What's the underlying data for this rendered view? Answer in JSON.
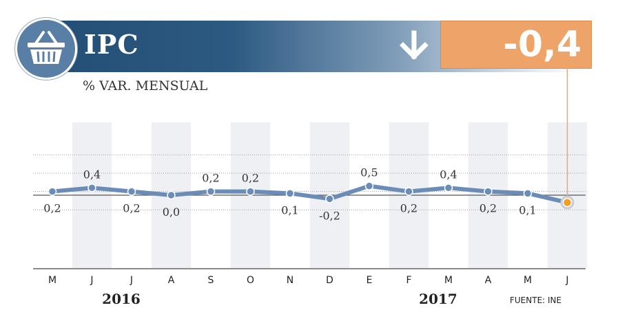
{
  "header": {
    "title": "IPC",
    "current_value": "-0,4",
    "trend_icon": "down-arrow-icon",
    "logo_icon": "shopping-basket-icon"
  },
  "subtitle": "% VAR. MENSUAL",
  "source": "FUENTE: INE",
  "colors": {
    "line": "#6a8cb6",
    "header_dark": "#234d74",
    "value_box": "#eea468",
    "highlight_point": "#f0a020"
  },
  "chart_data": {
    "type": "line",
    "categories": [
      "M",
      "J",
      "J",
      "A",
      "S",
      "O",
      "N",
      "D",
      "E",
      "F",
      "M",
      "A",
      "M",
      "J"
    ],
    "values": [
      0.2,
      0.4,
      0.2,
      0.0,
      0.2,
      0.2,
      0.1,
      -0.2,
      0.5,
      0.2,
      0.4,
      0.2,
      0.1,
      -0.4
    ],
    "data_labels": [
      "0,2",
      "0,4",
      "0,2",
      "0,0",
      "0,2",
      "0,2",
      "0,1",
      "-0,2",
      "0,5",
      "0,2",
      "0,4",
      "0,2",
      "0,1",
      ""
    ],
    "year_labels": [
      {
        "text": "2016",
        "category_index": 2
      },
      {
        "text": "2017",
        "category_index": 10
      }
    ],
    "title": "IPC",
    "ylabel": "% VAR. MENSUAL",
    "ylim": [
      -0.4,
      0.5
    ],
    "grid": true,
    "highlight_last_point": true
  }
}
